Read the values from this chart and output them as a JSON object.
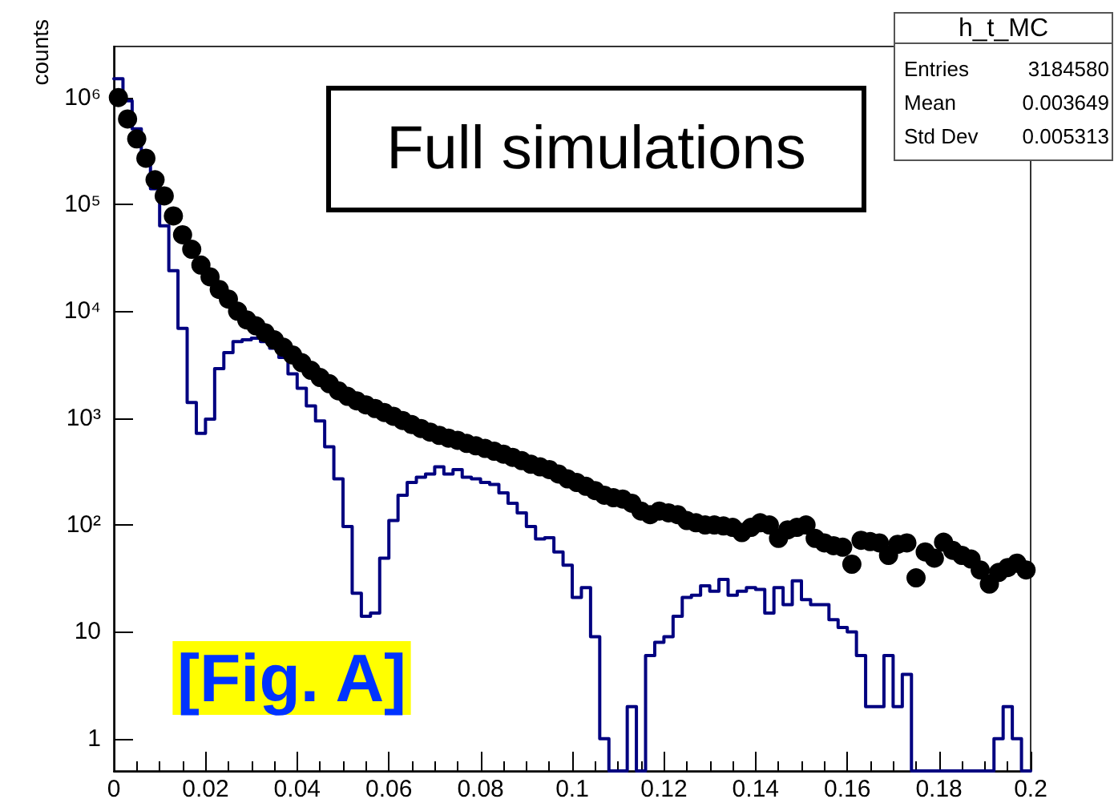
{
  "chart_data": {
    "type": "scatter",
    "ylabel": "counts",
    "log": "y",
    "marker": "circle",
    "xlim": [
      0,
      0.2
    ],
    "xticks": [
      0,
      0.02,
      0.04,
      0.06,
      0.08,
      0.1,
      0.12,
      0.14,
      0.16,
      0.18,
      0.2
    ],
    "ylim": [
      0.5,
      3000000
    ],
    "yticks": [
      1,
      10,
      {
        "value": 100,
        "label": "10²"
      },
      {
        "value": 1000,
        "label": "10³"
      },
      {
        "value": 10000,
        "label": "10⁴"
      },
      {
        "value": 100000,
        "label": "10⁵"
      },
      {
        "value": 1000000,
        "label": "10⁶"
      }
    ],
    "annotations": [
      "Full simulations",
      "[Fig. A]",
      "h_t_MC",
      "Entries",
      "3184580",
      "Mean",
      "0.003649",
      "Std Dev",
      "0.005313"
    ],
    "series": [
      {
        "type": "histogram",
        "color": "#000080",
        "bins": [
          0,
          0.002,
          0.004,
          0.006,
          0.008,
          0.01,
          0.012,
          0.014,
          0.016,
          0.018,
          0.02,
          0.022,
          0.024,
          0.026,
          0.028,
          0.03,
          0.032,
          0.034,
          0.036,
          0.038,
          0.04,
          0.042,
          0.044,
          0.046,
          0.048,
          0.05,
          0.052,
          0.054,
          0.056,
          0.058,
          0.06,
          0.062,
          0.064,
          0.066,
          0.068,
          0.07,
          0.072,
          0.074,
          0.076,
          0.078,
          0.08,
          0.082,
          0.084,
          0.086,
          0.088,
          0.09,
          0.092,
          0.094,
          0.096,
          0.098,
          0.1,
          0.102,
          0.104,
          0.106,
          0.108,
          0.11,
          0.112,
          0.114,
          0.116,
          0.118,
          0.12,
          0.122,
          0.124,
          0.126,
          0.128,
          0.13,
          0.132,
          0.134,
          0.136,
          0.138,
          0.14,
          0.142,
          0.144,
          0.146,
          0.148,
          0.15,
          0.152,
          0.154,
          0.156,
          0.158,
          0.16,
          0.162,
          0.164,
          0.166,
          0.168,
          0.17,
          0.172,
          0.174,
          0.176,
          0.178,
          0.18,
          0.182,
          0.184,
          0.186,
          0.188,
          0.19,
          0.192,
          0.194,
          0.196,
          0.198,
          0.2
        ],
        "values": [
          1500000,
          930000,
          510000,
          280000,
          140000,
          63000,
          24000,
          6900,
          1400,
          720,
          980,
          2900,
          4100,
          5200,
          5400,
          5600,
          5200,
          4500,
          3700,
          2600,
          1900,
          1300,
          940,
          540,
          270,
          97,
          23,
          14,
          15,
          49,
          110,
          190,
          250,
          280,
          300,
          350,
          300,
          330,
          280,
          270,
          250,
          240,
          200,
          160,
          130,
          97,
          74,
          76,
          56,
          42,
          21,
          26,
          9,
          1,
          null,
          null,
          2,
          null,
          6,
          8,
          9,
          14,
          21,
          22,
          27,
          24,
          31,
          22,
          24,
          26,
          25,
          15,
          26,
          18,
          30,
          20,
          18,
          18,
          13,
          11,
          10,
          6,
          2,
          2,
          6,
          2,
          4,
          null,
          null,
          null,
          null,
          null,
          null,
          null,
          null,
          null,
          1,
          2,
          1,
          null
        ]
      },
      {
        "color": "#000000",
        "x": [
          0.001,
          0.003,
          0.005,
          0.007,
          0.009,
          0.011,
          0.013,
          0.015,
          0.017,
          0.019,
          0.021,
          0.023,
          0.025,
          0.027,
          0.029,
          0.031,
          0.033,
          0.035,
          0.037,
          0.039,
          0.041,
          0.043,
          0.045,
          0.047,
          0.049,
          0.051,
          0.053,
          0.055,
          0.057,
          0.059,
          0.061,
          0.063,
          0.065,
          0.067,
          0.069,
          0.071,
          0.073,
          0.075,
          0.077,
          0.079,
          0.081,
          0.083,
          0.085,
          0.087,
          0.089,
          0.091,
          0.093,
          0.095,
          0.097,
          0.099,
          0.101,
          0.103,
          0.105,
          0.107,
          0.109,
          0.111,
          0.113,
          0.115,
          0.117,
          0.119,
          0.121,
          0.123,
          0.125,
          0.127,
          0.129,
          0.131,
          0.133,
          0.135,
          0.137,
          0.139,
          0.141,
          0.143,
          0.145,
          0.147,
          0.149,
          0.151,
          0.153,
          0.155,
          0.157,
          0.159,
          0.161,
          0.163,
          0.165,
          0.167,
          0.169,
          0.171,
          0.173,
          0.175,
          0.177,
          0.179,
          0.181,
          0.183,
          0.185,
          0.187,
          0.189,
          0.191,
          0.193,
          0.195,
          0.197,
          0.199
        ],
        "values": [
          1000000,
          630000,
          410000,
          270000,
          170000,
          120000,
          78000,
          52000,
          38000,
          27000,
          21000,
          16000,
          13000,
          10000,
          8300,
          7300,
          6300,
          5400,
          4600,
          3900,
          3300,
          2800,
          2400,
          2100,
          1800,
          1600,
          1450,
          1330,
          1230,
          1130,
          1040,
          950,
          870,
          800,
          740,
          690,
          650,
          620,
          580,
          550,
          520,
          490,
          460,
          430,
          400,
          370,
          350,
          330,
          300,
          270,
          250,
          230,
          210,
          190,
          180,
          175,
          160,
          135,
          125,
          135,
          130,
          125,
          110,
          105,
          100,
          100,
          98,
          95,
          85,
          95,
          105,
          100,
          75,
          90,
          95,
          100,
          75,
          68,
          64,
          62,
          43,
          72,
          70,
          68,
          52,
          66,
          68,
          32,
          56,
          49,
          69,
          58,
          52,
          48,
          38,
          28,
          36,
          40,
          44,
          38
        ]
      }
    ]
  }
}
